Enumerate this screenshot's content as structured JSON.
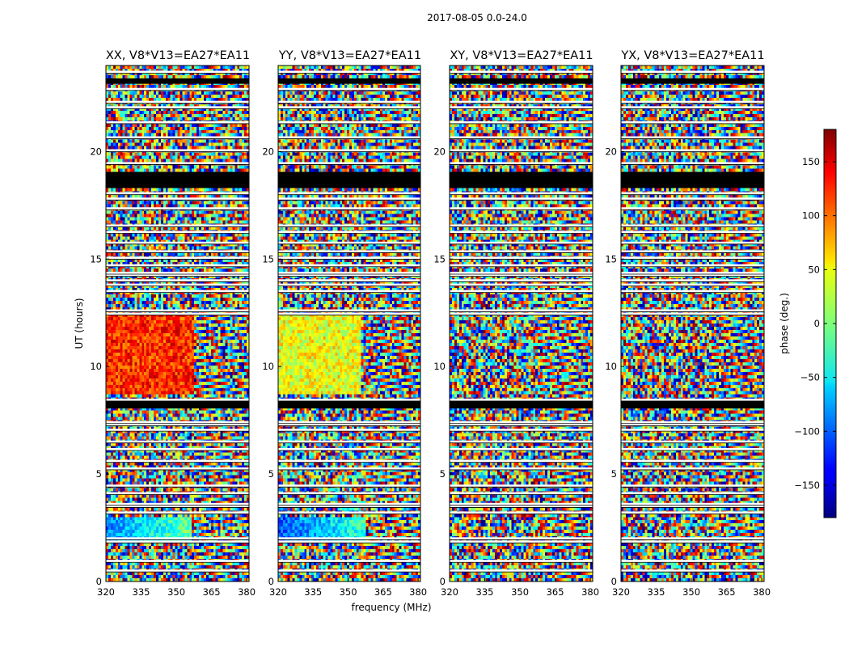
{
  "suptitle": "2017-08-05 0.0-24.0",
  "chart_data": {
    "type": "heatmap",
    "suptitle": "2017-08-05 0.0-24.0",
    "xlabel": "frequency (MHz)",
    "ylabel": "UT (hours)",
    "xlim": [
      320,
      381
    ],
    "ylim": [
      0,
      24
    ],
    "xticks": [
      "320",
      "335",
      "350",
      "365",
      "380"
    ],
    "yticks": [
      "0",
      "5",
      "10",
      "15",
      "20"
    ],
    "panels": [
      {
        "title": "XX, V8*V13=EA27*EA11",
        "coherent_band": {
          "x": [
            320,
            358
          ],
          "y": [
            8.7,
            12.4
          ],
          "phase": 120
        },
        "early_band": {
          "x": [
            320,
            357
          ],
          "y": [
            1.8,
            3.0
          ],
          "phase": -90
        }
      },
      {
        "title": "YY, V8*V13=EA27*EA11",
        "coherent_band": {
          "x": [
            320,
            356
          ],
          "y": [
            8.7,
            12.4
          ],
          "phase": 40
        },
        "early_band": {
          "x": [
            320,
            358
          ],
          "y": [
            1.8,
            3.0
          ],
          "phase": -110
        }
      },
      {
        "title": "XY, V8*V13=EA27*EA11",
        "coherent_band": null,
        "early_band": null
      },
      {
        "title": "YX, V8*V13=EA27*EA11",
        "coherent_band": null,
        "early_band": null
      }
    ],
    "flagged_rows_hours": [
      0.5,
      0.95,
      1.85,
      2.0,
      3.2,
      3.5,
      3.6,
      4.1,
      4.45,
      5.25,
      5.6,
      6.15,
      6.5,
      7.05,
      7.3,
      7.4,
      8.45,
      12.45,
      12.6,
      13.5,
      13.8,
      14.0,
      14.25,
      14.35,
      14.7,
      15.05,
      15.35,
      15.75,
      16.25,
      16.55,
      17.35,
      17.8,
      18.05,
      19.45,
      20.05,
      20.65,
      21.35,
      22.05,
      22.3,
      22.9,
      23.25,
      23.7
    ],
    "black_bands_hours": [
      [
        8.05,
        8.4
      ],
      [
        18.3,
        19.05
      ],
      [
        23.15,
        23.4
      ]
    ],
    "colorbar": {
      "label": "phase (deg.)",
      "range": [
        -180,
        180
      ],
      "ticks": [
        "150",
        "100",
        "50",
        "0",
        "−50",
        "−100",
        "−150"
      ],
      "tick_values": [
        150,
        100,
        50,
        0,
        -50,
        -100,
        -150
      ],
      "colormap": "jet"
    }
  }
}
